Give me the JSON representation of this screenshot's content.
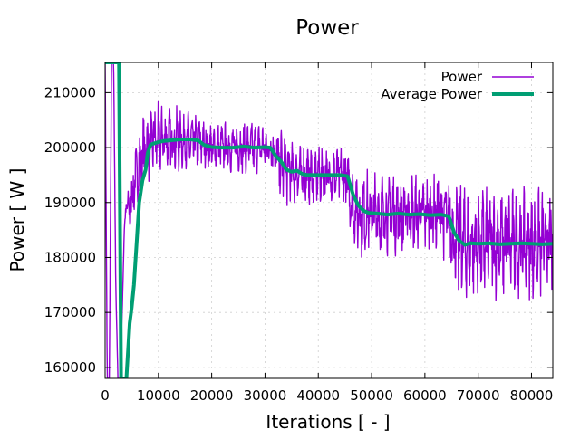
{
  "chart_data": {
    "type": "line",
    "title": "Power",
    "xlabel": "Iterations [ - ]",
    "ylabel": "Power [ W ]",
    "xlim": [
      0,
      84000
    ],
    "ylim": [
      158000,
      215500
    ],
    "xticks": [
      0,
      10000,
      20000,
      30000,
      40000,
      50000,
      60000,
      70000,
      80000
    ],
    "yticks": [
      160000,
      170000,
      180000,
      190000,
      200000,
      210000
    ],
    "grid": true,
    "legend_position": "top-right",
    "series": [
      {
        "name": "Power",
        "color": "#9400d3",
        "style": "noisy-oscillation",
        "x": [
          0,
          400,
          800,
          1200,
          1600,
          2000,
          2400,
          2800,
          3200,
          3600,
          4000,
          4600,
          5200,
          5800,
          6400,
          7000,
          8000,
          9000,
          10000,
          12000,
          14000,
          16000,
          18000,
          20000,
          22000,
          24000,
          26000,
          28000,
          30000,
          31500,
          32000,
          33000,
          34000,
          36000,
          38000,
          40000,
          42000,
          44000,
          45500,
          46500,
          47500,
          48500,
          50000,
          52000,
          54000,
          56000,
          58000,
          60000,
          62000,
          64000,
          65000,
          66000,
          67000,
          68000,
          70000,
          72000,
          74000,
          76000,
          78000,
          80000,
          82000,
          84000
        ],
        "values": [
          215500,
          158000,
          158000,
          215500,
          215500,
          175000,
          158000,
          158000,
          170000,
          185000,
          190000,
          188000,
          192000,
          195000,
          197000,
          199000,
          200500,
          201000,
          201500,
          201500,
          201500,
          201000,
          201000,
          200000,
          200000,
          200000,
          200000,
          200000,
          200000,
          200000,
          198500,
          197000,
          196000,
          195500,
          195000,
          195000,
          195000,
          195000,
          194000,
          189000,
          188500,
          188000,
          188000,
          188000,
          188000,
          188000,
          188000,
          188000,
          188000,
          187500,
          185000,
          183000,
          182500,
          182500,
          182500,
          182500,
          182500,
          182500,
          182500,
          182500,
          182500,
          182500
        ],
        "amplitude": [
          0,
          0,
          0,
          0,
          0,
          0,
          0,
          0,
          0,
          0,
          2000,
          3000,
          4000,
          4000,
          4500,
          5000,
          5000,
          5000,
          5000,
          4500,
          4500,
          4000,
          4000,
          3500,
          3500,
          3500,
          3500,
          3500,
          3500,
          3500,
          4500,
          5000,
          5000,
          4000,
          4000,
          4000,
          4000,
          4000,
          4500,
          6000,
          6000,
          6000,
          6000,
          6000,
          6000,
          5500,
          5500,
          5500,
          5500,
          6000,
          7000,
          8000,
          8000,
          8000,
          7500,
          7500,
          7500,
          7500,
          7500,
          7500,
          7500,
          7500
        ]
      },
      {
        "name": "Average Power",
        "color": "#009e73",
        "style": "smooth",
        "x": [
          0,
          1000,
          1500,
          2000,
          2600,
          3000,
          4000,
          4600,
          5000,
          5400,
          6000,
          6400,
          7000,
          7600,
          8000,
          8500,
          9000,
          10000,
          11000,
          12000,
          14000,
          16000,
          17500,
          18500,
          20000,
          22000,
          24000,
          26000,
          28000,
          30000,
          31000,
          32000,
          33000,
          34000,
          35000,
          36000,
          37000,
          38000,
          40000,
          42000,
          44000,
          45500,
          46500,
          47500,
          48500,
          49500,
          51000,
          53000,
          55000,
          57000,
          59000,
          61000,
          63000,
          64500,
          65500,
          66500,
          67500,
          68500,
          70000,
          72000,
          74000,
          76000,
          78000,
          80000,
          82000,
          84000
        ],
        "values": [
          215500,
          215500,
          215500,
          215500,
          215500,
          158000,
          158000,
          168000,
          171000,
          175000,
          184000,
          190000,
          194000,
          196000,
          199000,
          200500,
          200700,
          201000,
          201200,
          201300,
          201500,
          201500,
          201300,
          200500,
          200100,
          200000,
          200000,
          200200,
          200000,
          200100,
          200000,
          198500,
          197500,
          196000,
          195600,
          195800,
          195200,
          195000,
          195000,
          195000,
          195000,
          194800,
          191500,
          189500,
          188500,
          188100,
          188000,
          187800,
          188000,
          187800,
          187900,
          187700,
          187800,
          187500,
          184500,
          183000,
          182300,
          182600,
          182500,
          182600,
          182400,
          182500,
          182600,
          182500,
          182400,
          182500
        ]
      }
    ]
  }
}
